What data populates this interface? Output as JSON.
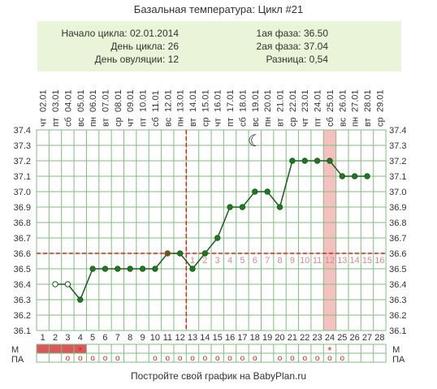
{
  "title": "Базальная температура: Цикл #21",
  "info": {
    "cycle_start_label": "Начало цикла:",
    "cycle_start": "02.01.2014",
    "cycle_day_label": "День цикла:",
    "cycle_day": "26",
    "ovulation_day_label": "День овуляции:",
    "ovulation_day": "12",
    "phase1_label": "1ая фаза:",
    "phase1": "36.50",
    "phase2_label": "2ая фаза:",
    "phase2": "37.04",
    "diff_label": "Разница:",
    "diff": "0,54"
  },
  "footer": "Постройте свой график на BabyPlan.ru",
  "row_labels": {
    "m": "М",
    "pa": "ПА"
  },
  "colors": {
    "line": "#1a5e1a",
    "point": "#1f7a1f",
    "grid": "#7fbf7f",
    "ovulation": "#e02020",
    "highlight": "#f6c0c0",
    "m_fill": "#d9585b",
    "info_bg": "#e9f4d8"
  },
  "chart_data": {
    "type": "line",
    "x": [
      1,
      2,
      3,
      4,
      5,
      6,
      7,
      8,
      9,
      10,
      11,
      12,
      13,
      14,
      15,
      16,
      17,
      18,
      19,
      20,
      21,
      22,
      23,
      24,
      25,
      26,
      27,
      28
    ],
    "dates": [
      "02.01",
      "03.01",
      "04.01",
      "05.01",
      "06.01",
      "07.01",
      "08.01",
      "09.01",
      "10.01",
      "11.01",
      "12.01",
      "13.01",
      "14.01",
      "15.01",
      "16.01",
      "17.01",
      "18.01",
      "19.01",
      "20.01",
      "21.01",
      "22.01",
      "23.01",
      "24.01",
      "25.01",
      "26.01",
      "27.01",
      "28.01",
      "29.01"
    ],
    "weekdays": [
      "чт",
      "пт",
      "сб",
      "вс",
      "пн",
      "вт",
      "ср",
      "чт",
      "пт",
      "сб",
      "вс",
      "пн",
      "вт",
      "ср",
      "чт",
      "пт",
      "сб",
      "вс",
      "пн",
      "вт",
      "ср",
      "чт",
      "пт",
      "сб",
      "вс",
      "пн",
      "вт",
      "ср"
    ],
    "series": [
      {
        "values": [
          null,
          36.4,
          36.4,
          36.3,
          36.5,
          36.5,
          36.5,
          36.5,
          36.5,
          36.5,
          36.6,
          36.6,
          36.5,
          36.6,
          36.7,
          36.9,
          36.9,
          37.0,
          37.0,
          36.9,
          37.2,
          37.2,
          37.2,
          37.2,
          37.1,
          37.1,
          37.1,
          null
        ],
        "hollow_days": [
          2,
          3
        ],
        "outlined_days": [
          11
        ]
      }
    ],
    "y_ticks": [
      "36.1",
      "36.2",
      "36.3",
      "36.4",
      "36.5",
      "36.6",
      "36.7",
      "36.8",
      "36.9",
      "37.0",
      "37.1",
      "37.2",
      "37.3",
      "37.4"
    ],
    "ylim": [
      36.1,
      37.4
    ],
    "coverline": 36.6,
    "ovulation_day": 12,
    "highlight_day": 24,
    "post_ovulation_labels": [
      "1",
      "2",
      "3",
      "4",
      "5",
      "6",
      "7",
      "8",
      "9",
      "10",
      "11",
      "12",
      "13",
      "14",
      "15",
      "16"
    ],
    "moon_day": 18,
    "moon_symbol": "☾",
    "m_days": [
      1,
      2,
      3,
      4
    ],
    "m_star_day": 4,
    "m_star_day_2": 24,
    "star_symbol": "*",
    "pa_days": [
      3,
      4,
      5,
      6,
      7,
      10,
      11,
      12,
      13,
      14,
      15,
      16,
      17,
      18,
      20,
      21,
      22,
      23,
      24,
      25
    ],
    "pa_symbol": "o",
    "grid": true
  }
}
